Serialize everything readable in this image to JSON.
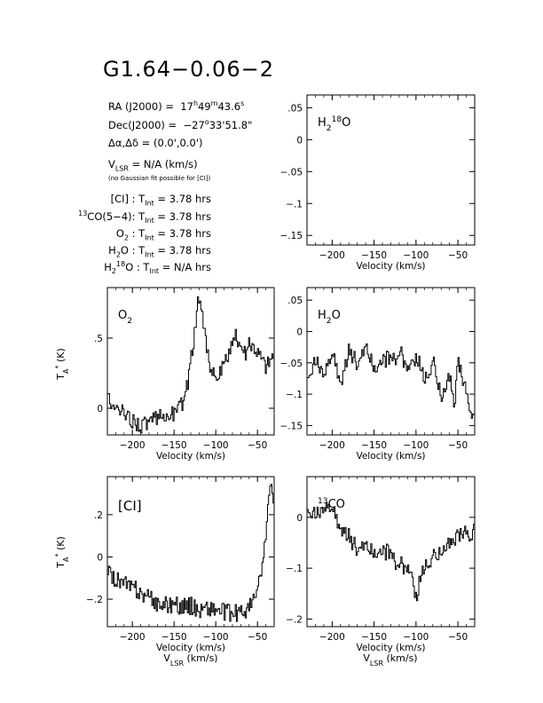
{
  "header": {
    "title": "G1.64−0.06−2",
    "ra_label": "RA (J2000) =",
    "ra_h": "17",
    "ra_m": "49",
    "ra_s": "43.6",
    "dec_label": "Dec(J2000) =",
    "dec_deg": "−27",
    "dec_rest": "33'51.8\"",
    "offset": "(0.0',0.0')",
    "vlsr_value": "= N/A  (km/s)",
    "fit_note": "(no Gaussian fit possible for [CI])"
  },
  "integrations": [
    {
      "line": "[CI]",
      "tint": "3.78 hrs"
    },
    {
      "line": "13CO(5−4)",
      "tint": "3.78 hrs"
    },
    {
      "line": "O2",
      "tint": "3.78 hrs"
    },
    {
      "line": "H2O",
      "tint": "3.78 hrs"
    },
    {
      "line": "H2 18O",
      "tint": "N/A hrs"
    }
  ],
  "labels": {
    "xlabel": "Velocity (km/s)",
    "xlabel_bottom": "VLSR (km/s)",
    "ylabel": "TA* (K)"
  },
  "chart_data": [
    {
      "type": "line",
      "panel": "H2 18O",
      "series": [],
      "xlim": [
        -230,
        -30
      ],
      "ylim": [
        -0.165,
        0.07
      ],
      "xticks": [
        -200,
        -150,
        -100,
        -50
      ],
      "yticks": [
        0.05,
        0,
        -0.05,
        -0.1,
        -0.15
      ]
    },
    {
      "type": "line",
      "panel": "O2",
      "xlim": [
        -230,
        -30
      ],
      "ylim": [
        -0.19,
        0.86
      ],
      "xticks": [
        -200,
        -150,
        -100,
        -50
      ],
      "yticks": [
        0,
        0.5
      ],
      "x": [
        -230,
        -220,
        -210,
        -200,
        -190,
        -180,
        -170,
        -160,
        -150,
        -145,
        -140,
        -135,
        -130,
        -125,
        -122,
        -120,
        -118,
        -115,
        -112,
        -110,
        -105,
        -100,
        -95,
        -90,
        -85,
        -80,
        -78,
        -75,
        -72,
        -70,
        -65,
        -60,
        -55,
        -50,
        -45,
        -40,
        -35,
        -31
      ],
      "values": [
        0.05,
        0.0,
        -0.05,
        -0.08,
        -0.12,
        -0.1,
        -0.08,
        -0.05,
        -0.03,
        0.0,
        0.05,
        0.15,
        0.35,
        0.6,
        0.78,
        0.8,
        0.75,
        0.6,
        0.45,
        0.4,
        0.25,
        0.2,
        0.25,
        0.3,
        0.4,
        0.45,
        0.5,
        0.5,
        0.47,
        0.45,
        0.4,
        0.45,
        0.45,
        0.4,
        0.35,
        0.3,
        0.35,
        0.4
      ]
    },
    {
      "type": "line",
      "panel": "H2O",
      "xlim": [
        -230,
        -30
      ],
      "ylim": [
        -0.165,
        0.07
      ],
      "xticks": [
        -200,
        -150,
        -100,
        -50
      ],
      "yticks": [
        0.05,
        0,
        -0.05,
        -0.1,
        -0.15
      ],
      "x": [
        -230,
        -220,
        -210,
        -200,
        -190,
        -180,
        -170,
        -160,
        -150,
        -140,
        -130,
        -120,
        -110,
        -100,
        -90,
        -80,
        -70,
        -60,
        -55,
        -50,
        -45,
        -40,
        -35,
        -31
      ],
      "values": [
        -0.07,
        -0.05,
        -0.06,
        -0.04,
        -0.08,
        -0.03,
        -0.05,
        -0.02,
        -0.06,
        -0.04,
        -0.05,
        -0.03,
        -0.06,
        -0.04,
        -0.08,
        -0.05,
        -0.1,
        -0.07,
        -0.12,
        -0.05,
        -0.08,
        -0.1,
        -0.12,
        -0.14
      ]
    },
    {
      "type": "line",
      "panel": "[CI]",
      "xlim": [
        -230,
        -30
      ],
      "ylim": [
        -0.33,
        0.38
      ],
      "xticks": [
        -200,
        -150,
        -100,
        -50
      ],
      "yticks": [
        0.2,
        0,
        -0.2
      ],
      "x": [
        -230,
        -220,
        -210,
        -200,
        -190,
        -180,
        -170,
        -160,
        -150,
        -140,
        -130,
        -120,
        -110,
        -100,
        -90,
        -80,
        -70,
        -60,
        -55,
        -50,
        -45,
        -42,
        -40,
        -38,
        -35,
        -32
      ],
      "values": [
        -0.08,
        -0.1,
        -0.13,
        -0.15,
        -0.17,
        -0.2,
        -0.22,
        -0.23,
        -0.22,
        -0.24,
        -0.23,
        -0.25,
        -0.24,
        -0.25,
        -0.26,
        -0.27,
        -0.26,
        -0.24,
        -0.2,
        -0.15,
        -0.05,
        0.05,
        0.15,
        0.25,
        0.32,
        0.28
      ]
    },
    {
      "type": "line",
      "panel": "13CO(5-4)",
      "xlim": [
        -230,
        -30
      ],
      "ylim": [
        -0.215,
        0.08
      ],
      "xticks": [
        -200,
        -150,
        -100,
        -50
      ],
      "yticks": [
        0,
        -0.1,
        -0.2
      ],
      "x": [
        -230,
        -220,
        -210,
        -200,
        -190,
        -180,
        -170,
        -160,
        -150,
        -140,
        -130,
        -120,
        -110,
        -105,
        -100,
        -95,
        -90,
        -80,
        -70,
        -60,
        -50,
        -40,
        -35,
        -31
      ],
      "values": [
        0.02,
        0.0,
        0.03,
        0.01,
        -0.02,
        -0.04,
        -0.06,
        -0.05,
        -0.07,
        -0.06,
        -0.08,
        -0.09,
        -0.1,
        -0.12,
        -0.16,
        -0.12,
        -0.1,
        -0.08,
        -0.06,
        -0.05,
        -0.04,
        -0.03,
        -0.03,
        -0.02
      ]
    }
  ]
}
